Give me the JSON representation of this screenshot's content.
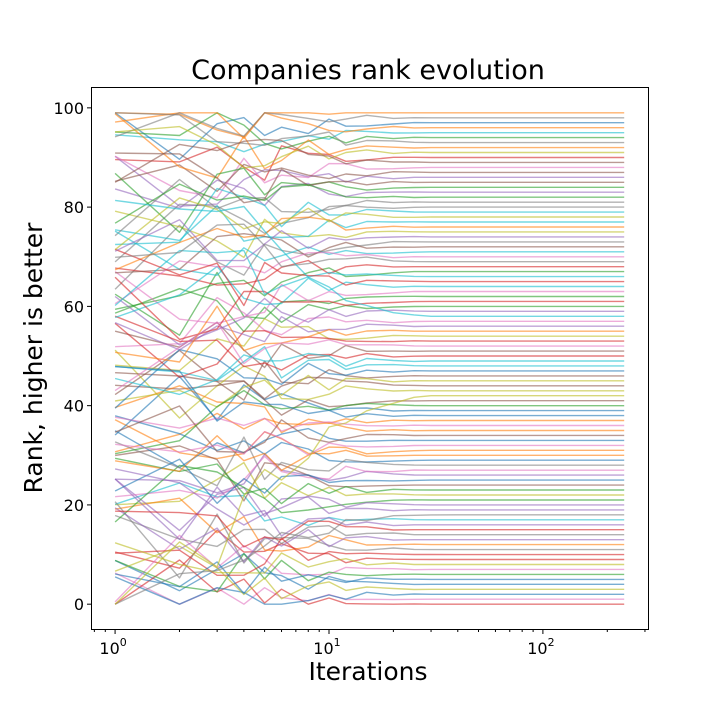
{
  "chart_data": {
    "type": "line",
    "title": "Companies rank evolution",
    "xlabel": "Iterations",
    "ylabel": "Rank, higher is better",
    "xscale": "log",
    "xlim": [
      0.78,
      310
    ],
    "ylim": [
      -5,
      104
    ],
    "x_ticks": [
      {
        "base": "10",
        "exp": "0",
        "value": 1
      },
      {
        "base": "10",
        "exp": "1",
        "value": 10
      },
      {
        "base": "10",
        "exp": "2",
        "value": 100
      }
    ],
    "y_ticks": [
      "0",
      "20",
      "40",
      "60",
      "80",
      "100"
    ],
    "y_tick_values": [
      0,
      20,
      40,
      60,
      80,
      100
    ],
    "x": [
      1,
      2,
      3,
      4,
      5,
      6,
      8,
      10,
      12,
      15,
      20,
      25,
      30,
      40,
      50,
      60,
      80,
      100,
      130,
      160,
      200,
      240
    ],
    "series_count": 100,
    "initial_ranks": [
      6,
      33,
      58,
      12,
      81,
      47,
      3,
      70,
      25,
      91,
      40,
      15,
      64,
      88,
      29,
      52,
      9,
      77,
      44,
      19,
      95,
      36,
      61,
      2,
      84,
      27,
      56,
      13,
      72,
      49,
      31,
      99,
      8,
      66,
      22,
      41,
      87,
      17,
      54,
      74,
      1,
      38,
      93,
      11,
      59,
      45,
      26,
      80,
      5,
      68,
      34,
      96,
      21,
      50,
      14,
      85,
      62,
      30,
      43,
      78,
      7,
      90,
      24,
      53,
      18,
      71,
      37,
      98,
      10,
      63,
      46,
      28,
      82,
      16,
      57,
      35,
      69,
      4,
      92,
      48,
      23,
      76,
      39,
      60,
      20,
      86,
      32,
      97,
      0,
      67,
      42,
      55,
      83,
      65,
      73,
      94,
      51,
      75,
      79,
      89
    ],
    "final_ranks": [
      4,
      30,
      60,
      9,
      83,
      44,
      1,
      73,
      22,
      95,
      39,
      12,
      67,
      90,
      26,
      51,
      7,
      80,
      43,
      17,
      97,
      35,
      62,
      0,
      86,
      24,
      57,
      11,
      75,
      48,
      29,
      99,
      6,
      68,
      19,
      41,
      88,
      14,
      54,
      77,
      2,
      37,
      94,
      10,
      59,
      46,
      27,
      81,
      3,
      71,
      33,
      96,
      21,
      50,
      13,
      87,
      63,
      28,
      45,
      79,
      5,
      92,
      23,
      53,
      16,
      72,
      36,
      98,
      8,
      64,
      47,
      31,
      84,
      15,
      56,
      34,
      70,
      18,
      91,
      49,
      25,
      76,
      40,
      61,
      20,
      85,
      32,
      93,
      42,
      66,
      38,
      55,
      82,
      65,
      74,
      89,
      52,
      69,
      78,
      58
    ],
    "colors": [
      "#1f77b4",
      "#ff7f0e",
      "#2ca02c",
      "#d62728",
      "#9467bd",
      "#8c564b",
      "#e377c2",
      "#7f7f7f",
      "#bcbd22",
      "#17becf"
    ]
  }
}
